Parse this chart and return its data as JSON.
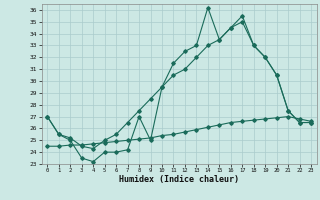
{
  "xlabel": "Humidex (Indice chaleur)",
  "background_color": "#cce8e4",
  "grid_color": "#aacccc",
  "line_color": "#1a6b5a",
  "xlim": [
    -0.5,
    23.5
  ],
  "ylim": [
    23,
    36.5
  ],
  "yticks": [
    23,
    24,
    25,
    26,
    27,
    28,
    29,
    30,
    31,
    32,
    33,
    34,
    35,
    36
  ],
  "xticks": [
    0,
    1,
    2,
    3,
    4,
    5,
    6,
    7,
    8,
    9,
    10,
    11,
    12,
    13,
    14,
    15,
    16,
    17,
    18,
    19,
    20,
    21,
    22,
    23
  ],
  "series1_y": [
    27.0,
    25.5,
    25.0,
    23.5,
    23.2,
    24.0,
    24.0,
    24.2,
    27.0,
    25.0,
    29.5,
    31.5,
    32.5,
    33.0,
    36.2,
    33.5,
    34.5,
    35.5,
    33.0,
    32.0,
    30.5,
    27.5,
    26.5,
    26.5
  ],
  "series2_y": [
    27.0,
    25.5,
    25.2,
    24.5,
    24.3,
    25.0,
    25.5,
    26.5,
    27.5,
    28.5,
    29.5,
    30.5,
    31.0,
    32.0,
    33.0,
    33.5,
    34.5,
    35.0,
    33.0,
    32.0,
    30.5,
    27.5,
    26.5,
    26.5
  ],
  "series3_y": [
    24.5,
    24.5,
    24.6,
    24.6,
    24.7,
    24.8,
    24.9,
    25.0,
    25.1,
    25.2,
    25.4,
    25.5,
    25.7,
    25.9,
    26.1,
    26.3,
    26.5,
    26.6,
    26.7,
    26.8,
    26.9,
    27.0,
    26.8,
    26.6
  ]
}
